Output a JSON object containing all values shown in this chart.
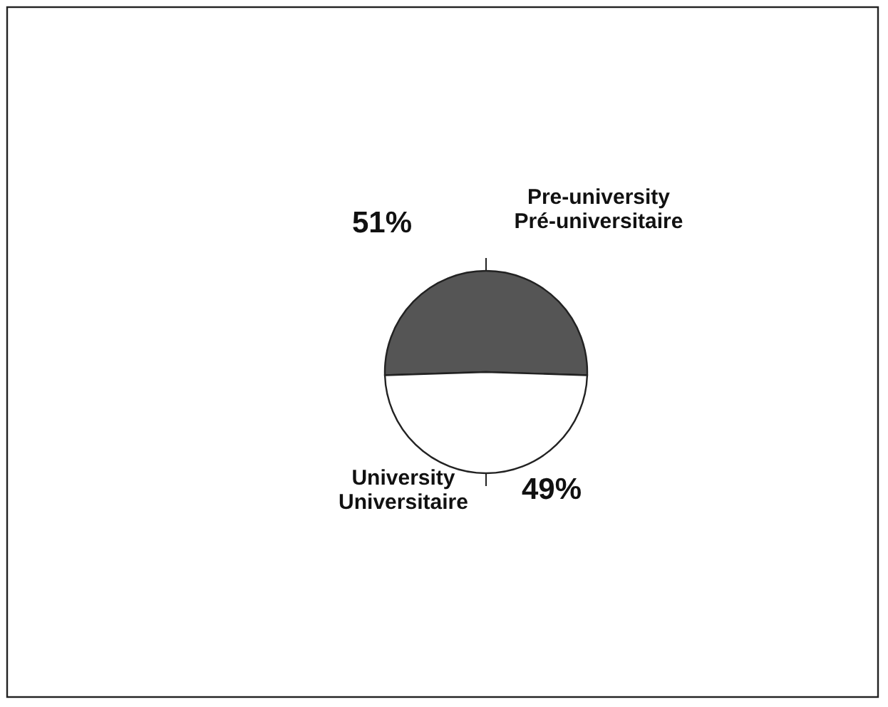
{
  "chart_data": {
    "type": "pie",
    "categories": [
      "Pre-university\nPré-universitaire",
      "University\nUniversitaire"
    ],
    "values": [
      51,
      49
    ],
    "colors": [
      "#555555",
      "#ffffff"
    ],
    "value_labels": [
      "51%",
      "49%"
    ]
  }
}
